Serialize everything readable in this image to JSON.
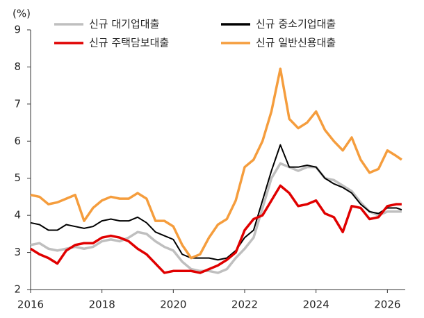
{
  "chart_data": {
    "type": "line",
    "y_label": "(%)",
    "x": [
      2016,
      2016.25,
      2016.5,
      2016.75,
      2017,
      2017.25,
      2017.5,
      2017.75,
      2018,
      2018.25,
      2018.5,
      2018.75,
      2019,
      2019.25,
      2019.5,
      2019.75,
      2020,
      2020.25,
      2020.5,
      2020.75,
      2021,
      2021.25,
      2021.5,
      2021.75,
      2022,
      2022.25,
      2022.5,
      2022.75,
      2023,
      2023.25,
      2023.5,
      2023.75,
      2024,
      2024.25,
      2024.5,
      2024.75,
      2025,
      2025.25,
      2025.5,
      2025.75,
      2026,
      2026.25,
      2026.4
    ],
    "series": [
      {
        "name": "신규 대기업대출",
        "color": "#bfbfbf",
        "values": [
          3.2,
          3.25,
          3.1,
          3.05,
          3.1,
          3.15,
          3.1,
          3.15,
          3.3,
          3.35,
          3.3,
          3.4,
          3.55,
          3.5,
          3.3,
          3.15,
          3.05,
          2.75,
          2.55,
          2.5,
          2.5,
          2.45,
          2.55,
          2.85,
          3.1,
          3.4,
          4.2,
          5.0,
          5.4,
          5.3,
          5.2,
          5.3,
          5.3,
          5.0,
          4.95,
          4.8,
          4.65,
          4.35,
          4.1,
          4.0,
          4.1,
          4.1,
          4.1
        ]
      },
      {
        "name": "신규 중소기업대출",
        "color": "#000000",
        "values": [
          3.8,
          3.75,
          3.6,
          3.6,
          3.75,
          3.7,
          3.65,
          3.7,
          3.85,
          3.9,
          3.85,
          3.85,
          3.95,
          3.8,
          3.55,
          3.45,
          3.35,
          2.95,
          2.85,
          2.85,
          2.85,
          2.8,
          2.85,
          3.05,
          3.4,
          3.6,
          4.4,
          5.2,
          5.9,
          5.3,
          5.3,
          5.35,
          5.3,
          5.0,
          4.85,
          4.75,
          4.6,
          4.3,
          4.1,
          4.05,
          4.2,
          4.2,
          4.15
        ]
      },
      {
        "name": "신규 주택담보대출",
        "color": "#e00000",
        "values": [
          3.1,
          2.95,
          2.85,
          2.7,
          3.05,
          3.2,
          3.25,
          3.25,
          3.4,
          3.45,
          3.4,
          3.3,
          3.1,
          2.95,
          2.7,
          2.45,
          2.5,
          2.5,
          2.5,
          2.45,
          2.55,
          2.65,
          2.8,
          3.0,
          3.6,
          3.9,
          4.0,
          4.4,
          4.8,
          4.6,
          4.25,
          4.3,
          4.4,
          4.05,
          3.95,
          3.55,
          4.25,
          4.2,
          3.9,
          3.95,
          4.25,
          4.3,
          4.3
        ]
      },
      {
        "name": "신규 일반신용대출",
        "color": "#f59d3d",
        "values": [
          4.55,
          4.5,
          4.3,
          4.35,
          4.45,
          4.55,
          3.85,
          4.2,
          4.4,
          4.5,
          4.45,
          4.45,
          4.6,
          4.45,
          3.85,
          3.85,
          3.7,
          3.2,
          2.85,
          2.95,
          3.4,
          3.75,
          3.9,
          4.4,
          5.3,
          5.5,
          6.0,
          6.8,
          7.95,
          6.6,
          6.35,
          6.5,
          6.8,
          6.3,
          6.0,
          5.75,
          6.1,
          5.5,
          5.15,
          5.25,
          5.75,
          5.6,
          5.5
        ]
      }
    ],
    "xlim": [
      2016,
      2026.5
    ],
    "xticks": [
      2016,
      2018,
      2020,
      2022,
      2024,
      2026
    ],
    "ylim": [
      2,
      9
    ],
    "yticks": [
      2,
      3,
      4,
      5,
      6,
      7,
      8,
      9
    ],
    "grid": false
  }
}
